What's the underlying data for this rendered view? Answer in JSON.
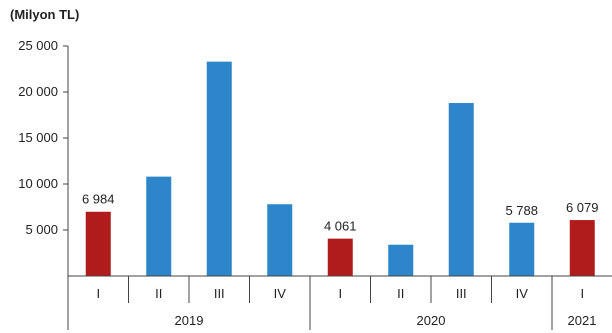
{
  "chart_data": {
    "type": "bar",
    "unit_label": "(Milyon TL)",
    "ylim": [
      0,
      25000
    ],
    "yticks": [
      {
        "value": 5000,
        "label": "5 000"
      },
      {
        "value": 10000,
        "label": "10 000"
      },
      {
        "value": 15000,
        "label": "15 000"
      },
      {
        "value": 20000,
        "label": "20 000"
      },
      {
        "value": 25000,
        "label": "25 000"
      }
    ],
    "grid": false,
    "legend": "none",
    "colors": {
      "highlight": "#b01c1c",
      "default": "#2d86c9"
    },
    "bars": [
      {
        "category": "I",
        "year": "2019",
        "value": 6984,
        "label": "6 984",
        "highlight": true
      },
      {
        "category": "II",
        "year": "2019",
        "value": 10800,
        "label": "",
        "highlight": false
      },
      {
        "category": "III",
        "year": "2019",
        "value": 23300,
        "label": "",
        "highlight": false
      },
      {
        "category": "IV",
        "year": "2019",
        "value": 7800,
        "label": "",
        "highlight": false
      },
      {
        "category": "I",
        "year": "2020",
        "value": 4061,
        "label": "4 061",
        "highlight": true
      },
      {
        "category": "II",
        "year": "2020",
        "value": 3400,
        "label": "",
        "highlight": false
      },
      {
        "category": "III",
        "year": "2020",
        "value": 18800,
        "label": "",
        "highlight": false
      },
      {
        "category": "IV",
        "year": "2020",
        "value": 5788,
        "label": "5 788",
        "highlight": false
      },
      {
        "category": "I",
        "year": "2021",
        "value": 6079,
        "label": "6 079",
        "highlight": true
      }
    ],
    "years": [
      "2019",
      "2020",
      "2021"
    ]
  }
}
